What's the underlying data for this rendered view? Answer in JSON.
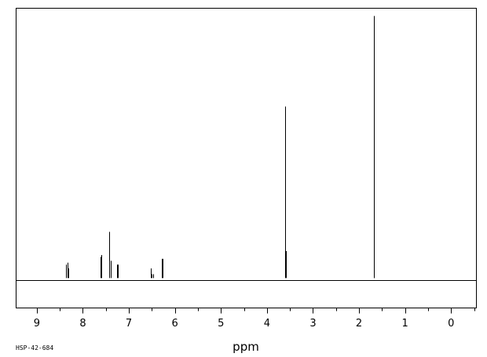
{
  "chart_data": {
    "type": "line",
    "title": "",
    "xlabel": "ppm",
    "ylabel": "",
    "xlim": [
      9.45,
      -0.55
    ],
    "ylim": [
      -0.155,
      1.4
    ],
    "x_reversed": true,
    "grid": false,
    "legend": "none",
    "x_ticks": [
      9,
      8,
      7,
      6,
      5,
      4,
      3,
      2,
      1,
      0
    ],
    "x_tick_labels": [
      "9",
      "8",
      "7",
      "6",
      "5",
      "4",
      "3",
      "2",
      "1",
      "0"
    ],
    "minor_tick_step": 0.5,
    "sample_id": "HSP-42-684",
    "peaks": [
      {
        "ppm": 8.36,
        "height": 0.07
      },
      {
        "ppm": 8.34,
        "height": 0.08
      },
      {
        "ppm": 8.32,
        "height": 0.05
      },
      {
        "ppm": 7.61,
        "height": 0.11
      },
      {
        "ppm": 7.59,
        "height": 0.12
      },
      {
        "ppm": 7.42,
        "height": 0.24
      },
      {
        "ppm": 7.4,
        "height": 0.09
      },
      {
        "ppm": 7.26,
        "height": 0.07
      },
      {
        "ppm": 7.24,
        "height": 0.07
      },
      {
        "ppm": 6.53,
        "height": 0.05
      },
      {
        "ppm": 6.5,
        "height": 0.02
      },
      {
        "ppm": 6.48,
        "height": 0.02
      },
      {
        "ppm": 6.29,
        "height": 0.1
      },
      {
        "ppm": 6.26,
        "height": 0.1
      },
      {
        "ppm": 3.6,
        "height": 0.89
      },
      {
        "ppm": 3.59,
        "height": 0.14
      },
      {
        "ppm": 1.67,
        "height": 1.36
      },
      {
        "ppm": 1.68,
        "height": 0.7
      }
    ]
  }
}
